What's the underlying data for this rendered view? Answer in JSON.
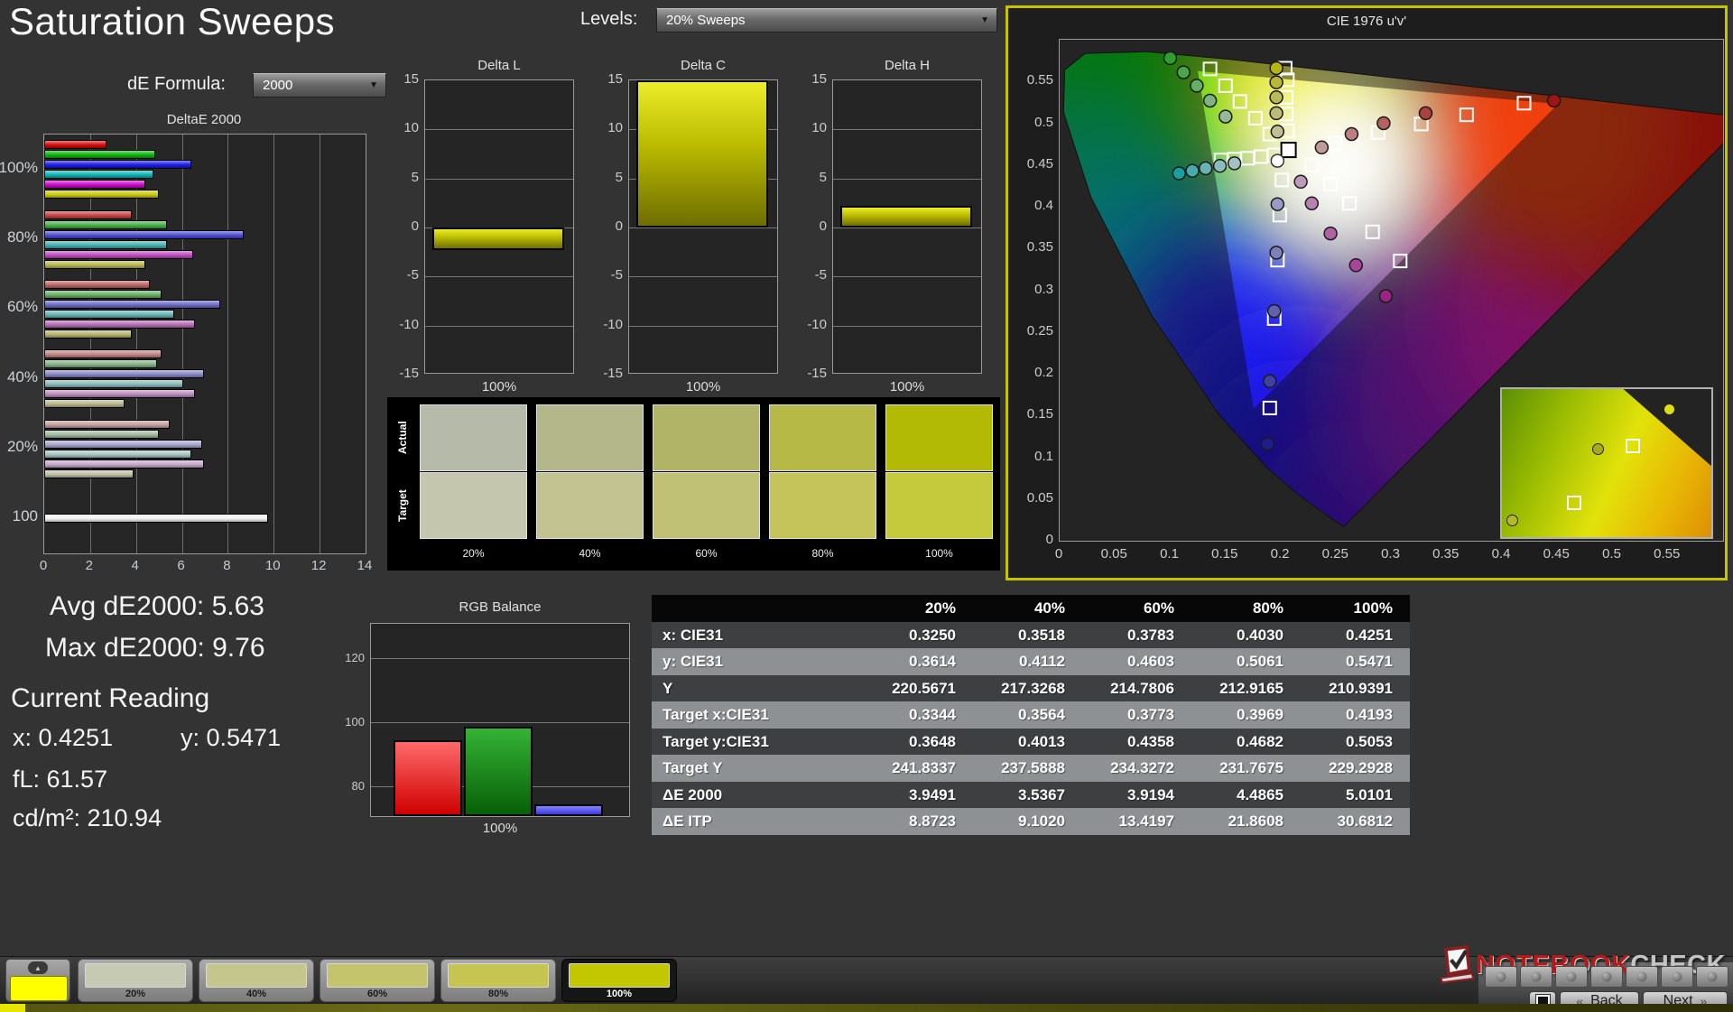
{
  "title": "Saturation Sweeps",
  "colors": {
    "accent_yellow": "#c9c900",
    "background": "#333333",
    "cie_panel_border": "#c6c200"
  },
  "controls": {
    "levels_label": "Levels:",
    "levels_value": "20% Sweeps",
    "de_formula_label": "dE Formula:",
    "de_formula_value": "2000"
  },
  "summary": {
    "avg": "Avg dE2000: 5.63",
    "max": "Max dE2000: 9.76",
    "current_reading_label": "Current Reading",
    "x": "x: 0.4251",
    "y": "y: 0.5471",
    "fl": "fL: 61.57",
    "cdm2": "cd/m²: 210.94"
  },
  "chart_data": [
    {
      "id": "deltae2000",
      "type": "bar",
      "orientation": "horizontal",
      "title": "DeltaE 2000",
      "xlim": [
        0,
        14
      ],
      "xticks": [
        0,
        2,
        4,
        6,
        8,
        10,
        12,
        14
      ],
      "groups": [
        {
          "label": "100%",
          "values": [
            2.7,
            4.85,
            6.4,
            4.75,
            4.4,
            5.0
          ],
          "colors": [
            "#d40000",
            "#00b400",
            "#1414e6",
            "#00b4b4",
            "#cc00cc",
            "#c8c800"
          ]
        },
        {
          "label": "80%",
          "values": [
            3.8,
            5.35,
            8.7,
            5.35,
            6.5,
            4.4
          ],
          "colors": [
            "#c43c3c",
            "#3cae3c",
            "#4646d2",
            "#3caeae",
            "#bc46bc",
            "#b4b448"
          ]
        },
        {
          "label": "60%",
          "values": [
            4.6,
            5.1,
            7.65,
            5.65,
            6.55,
            3.8
          ],
          "colors": [
            "#bd5f5f",
            "#5fae5f",
            "#6666c8",
            "#63b2b2",
            "#b468b4",
            "#b2b266"
          ]
        },
        {
          "label": "40%",
          "values": [
            5.1,
            4.9,
            6.95,
            6.05,
            6.55,
            3.5
          ],
          "colors": [
            "#c08080",
            "#80b280",
            "#8484c6",
            "#84b8b8",
            "#bc88bc",
            "#b4b486"
          ]
        },
        {
          "label": "20%",
          "values": [
            5.45,
            5.0,
            6.9,
            6.4,
            6.95,
            3.9
          ],
          "colors": [
            "#c29c9c",
            "#9cba9c",
            "#a2a2cc",
            "#a2c2c2",
            "#c4a4c8",
            "#bcbc9e"
          ]
        },
        {
          "label": "100",
          "values": [
            9.76
          ],
          "colors": [
            "#f2f2f2"
          ]
        }
      ]
    },
    {
      "id": "delta_l",
      "type": "bar",
      "title": "Delta L",
      "ylim": [
        -15,
        15
      ],
      "yticks": [
        15,
        10,
        5,
        0,
        -5,
        -10,
        -15
      ],
      "category": "100%",
      "value": -2.3,
      "bar_color": "#c9c900"
    },
    {
      "id": "delta_c",
      "type": "bar",
      "title": "Delta C",
      "ylim": [
        -15,
        15
      ],
      "yticks": [
        15,
        10,
        5,
        0,
        -5,
        -10,
        -15
      ],
      "category": "100%",
      "value": 15,
      "bar_color": "#c9c900"
    },
    {
      "id": "delta_h",
      "type": "bar",
      "title": "Delta H",
      "ylim": [
        -15,
        15
      ],
      "yticks": [
        15,
        10,
        5,
        0,
        -5,
        -10,
        -15
      ],
      "category": "100%",
      "value": 2.2,
      "bar_color": "#c9c900"
    },
    {
      "id": "rgb_balance",
      "type": "bar",
      "title": "RGB Balance",
      "category": "100%",
      "ylim": [
        70,
        130.6
      ],
      "yticks": [
        120,
        100,
        80
      ],
      "series": [
        {
          "name": "red",
          "value": 94.3,
          "color_top": "#ff6a6a",
          "color_bottom": "#cf0000"
        },
        {
          "name": "green",
          "value": 98.6,
          "color_top": "#35b335",
          "color_bottom": "#076007"
        },
        {
          "name": "blue",
          "value": 74.3,
          "color_top": "#8585ff",
          "color_bottom": "#3838e0"
        }
      ]
    },
    {
      "id": "cie1976",
      "type": "scatter",
      "title": "CIE 1976 u'v'",
      "xlim": [
        0,
        0.6
      ],
      "ylim": [
        0,
        0.6
      ],
      "ticks": [
        0,
        0.05,
        0.1,
        0.15,
        0.2,
        0.25,
        0.3,
        0.35,
        0.4,
        0.45,
        0.5,
        0.55
      ],
      "srgb_triangle": [
        [
          0.4507,
          0.5229
        ],
        [
          0.125,
          0.5625
        ],
        [
          0.1754,
          0.1579
        ]
      ],
      "white_target": [
        0.207,
        0.468
      ],
      "white_measured": [
        0.197,
        0.455
      ],
      "target_squares": [
        [
          0.136,
          0.565
        ],
        [
          0.15,
          0.545
        ],
        [
          0.163,
          0.526
        ],
        [
          0.177,
          0.506
        ],
        [
          0.19,
          0.487
        ],
        [
          0.204,
          0.566
        ],
        [
          0.206,
          0.552
        ],
        [
          0.205,
          0.531
        ],
        [
          0.205,
          0.511
        ],
        [
          0.206,
          0.491
        ],
        [
          0.146,
          0.456
        ],
        [
          0.158,
          0.457
        ],
        [
          0.17,
          0.458
        ],
        [
          0.182,
          0.46
        ],
        [
          0.194,
          0.462
        ],
        [
          0.249,
          0.476
        ],
        [
          0.288,
          0.489
        ],
        [
          0.327,
          0.499
        ],
        [
          0.368,
          0.51
        ],
        [
          0.42,
          0.524
        ],
        [
          0.228,
          0.45
        ],
        [
          0.245,
          0.427
        ],
        [
          0.262,
          0.404
        ],
        [
          0.283,
          0.37
        ],
        [
          0.308,
          0.335
        ],
        [
          0.201,
          0.432
        ],
        [
          0.199,
          0.39
        ],
        [
          0.197,
          0.336
        ],
        [
          0.194,
          0.266
        ],
        [
          0.19,
          0.159
        ]
      ],
      "measured_circles": [
        [
          0.1,
          0.578,
          "#2f9e2f"
        ],
        [
          0.112,
          0.561,
          "#4aa54a"
        ],
        [
          0.124,
          0.545,
          "#66ad66"
        ],
        [
          0.136,
          0.527,
          "#7fb37f"
        ],
        [
          0.15,
          0.508,
          "#95ba95"
        ],
        [
          0.196,
          0.566,
          "#b5b513"
        ],
        [
          0.196,
          0.549,
          "#b7b73a"
        ],
        [
          0.196,
          0.531,
          "#bab95c"
        ],
        [
          0.196,
          0.512,
          "#bcbb79"
        ],
        [
          0.197,
          0.49,
          "#bfbe94"
        ],
        [
          0.108,
          0.44,
          "#18a0a0"
        ],
        [
          0.12,
          0.443,
          "#46abab"
        ],
        [
          0.132,
          0.446,
          "#6bb3b3"
        ],
        [
          0.145,
          0.449,
          "#8abcbc"
        ],
        [
          0.158,
          0.452,
          "#a2c2c2"
        ],
        [
          0.237,
          0.471,
          "#c39a9a"
        ],
        [
          0.264,
          0.487,
          "#bd7f7f"
        ],
        [
          0.293,
          0.5,
          "#b66060"
        ],
        [
          0.331,
          0.512,
          "#ad3f3f"
        ],
        [
          0.447,
          0.527,
          "#a01414"
        ],
        [
          0.218,
          0.43,
          "#bd9ab8"
        ],
        [
          0.228,
          0.404,
          "#b780ae"
        ],
        [
          0.245,
          0.368,
          "#b063a3"
        ],
        [
          0.268,
          0.33,
          "#a84597"
        ],
        [
          0.295,
          0.293,
          "#9c2386"
        ],
        [
          0.197,
          0.403,
          "#9a9ac4"
        ],
        [
          0.196,
          0.345,
          "#7f7fba"
        ],
        [
          0.194,
          0.275,
          "#6161ae"
        ],
        [
          0.19,
          0.191,
          "#40409e"
        ],
        [
          0.188,
          0.116,
          "#1d1d8c"
        ]
      ],
      "inset": {
        "points": [
          {
            "type": "circle",
            "x": 0.8,
            "y": 0.14,
            "color": "#dede10"
          },
          {
            "type": "circle",
            "x": 0.46,
            "y": 0.41,
            "color": "#a8aa1e"
          },
          {
            "type": "square",
            "x": 0.62,
            "y": 0.38
          },
          {
            "type": "square",
            "x": 0.34,
            "y": 0.76
          },
          {
            "type": "circle",
            "x": 0.05,
            "y": 0.89,
            "color": "#b6b82a"
          }
        ]
      }
    }
  ],
  "saturation_swatches": {
    "row_labels": [
      "Actual",
      "Target"
    ],
    "labels": [
      "20%",
      "40%",
      "60%",
      "80%",
      "100%"
    ],
    "actual_colors": [
      "#b6baa9",
      "#b4b78a",
      "#b1b467",
      "#b6b945",
      "#b2ba06"
    ],
    "target_colors": [
      "#c4c6ae",
      "#c2c391",
      "#c0c175",
      "#c4c45b",
      "#c5c93c"
    ]
  },
  "measurement_table": {
    "header": [
      "",
      "20%",
      "40%",
      "60%",
      "80%",
      "100%"
    ],
    "rows": [
      {
        "label": "x: CIE31",
        "values": [
          "0.3250",
          "0.3518",
          "0.3783",
          "0.4030",
          "0.4251"
        ]
      },
      {
        "label": "y: CIE31",
        "values": [
          "0.3614",
          "0.4112",
          "0.4603",
          "0.5061",
          "0.5471"
        ]
      },
      {
        "label": "Y",
        "values": [
          "220.5671",
          "217.3268",
          "214.7806",
          "212.9165",
          "210.9391"
        ]
      },
      {
        "label": "Target x:CIE31",
        "values": [
          "0.3344",
          "0.3564",
          "0.3773",
          "0.3969",
          "0.4193"
        ]
      },
      {
        "label": "Target y:CIE31",
        "values": [
          "0.3648",
          "0.4013",
          "0.4358",
          "0.4682",
          "0.5053"
        ]
      },
      {
        "label": "Target Y",
        "values": [
          "241.8337",
          "237.5888",
          "234.3272",
          "231.7675",
          "229.2928"
        ]
      },
      {
        "label": "ΔE 2000",
        "values": [
          "3.9491",
          "3.5367",
          "3.9194",
          "4.4865",
          "5.0101"
        ]
      },
      {
        "label": "ΔE ITP",
        "values": [
          "8.8723",
          "9.1020",
          "13.4197",
          "21.8608",
          "30.6812"
        ]
      }
    ]
  },
  "bottom_bar": {
    "up_arrow": "▲",
    "selected_swatch_color": "#ffff00",
    "cards": [
      {
        "label": "20%",
        "color": "#c7cab2",
        "selected": false
      },
      {
        "label": "40%",
        "color": "#c5c68c",
        "selected": false
      },
      {
        "label": "60%",
        "color": "#c3c46c",
        "selected": false
      },
      {
        "label": "80%",
        "color": "#c7c551",
        "selected": false
      },
      {
        "label": "100%",
        "color": "#c3c701",
        "selected": true
      }
    ],
    "back_chevron": "«",
    "next_chevron": "»",
    "back_label": "Back",
    "next_label": "Next"
  },
  "logo": {
    "brand_primary": "NOTEBOOK",
    "brand_secondary": "CHECK"
  }
}
